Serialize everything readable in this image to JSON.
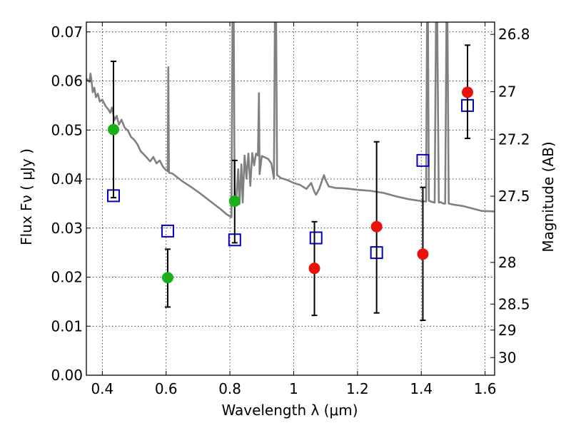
{
  "chart_data": {
    "type": "scatter",
    "xlabel": "Wavelength  λ (μm)",
    "ylabel": "Flux  Fν ( μJy )",
    "ylabel_right": "Magnitude (AB)",
    "xlim": [
      0.35,
      1.63
    ],
    "ylim": [
      0,
      0.072
    ],
    "grid": true,
    "x_ticks": [
      0.4,
      0.6,
      0.8,
      1,
      1.2,
      1.4,
      1.6
    ],
    "x_tick_labels": [
      "0.4",
      "0.6",
      "0.8",
      "1",
      "1.2",
      "1.4",
      "1.6"
    ],
    "y_ticks": [
      0,
      0.01,
      0.02,
      0.03,
      0.04,
      0.05,
      0.06,
      0.07
    ],
    "y_tick_labels": [
      "0.00",
      "0.01",
      "0.02",
      "0.03",
      "0.04",
      "0.05",
      "0.06",
      "0.07"
    ],
    "right_ticks": [
      {
        "label": "26.8",
        "flux": 0.0695
      },
      {
        "label": "27",
        "flux": 0.0578
      },
      {
        "label": "27.2",
        "flux": 0.0481
      },
      {
        "label": "27.5",
        "flux": 0.0365
      },
      {
        "label": "28",
        "flux": 0.023
      },
      {
        "label": "28.5",
        "flux": 0.0145
      },
      {
        "label": "29",
        "flux": 0.0092
      },
      {
        "label": "30",
        "flux": 0.0036
      }
    ],
    "series": [
      {
        "style": "model-line",
        "color": "#808080",
        "points": [
          [
            0.35,
            0.0605
          ],
          [
            0.36,
            0.0598
          ],
          [
            0.363,
            0.0615
          ],
          [
            0.367,
            0.0596
          ],
          [
            0.37,
            0.0577
          ],
          [
            0.375,
            0.0586
          ],
          [
            0.38,
            0.0567
          ],
          [
            0.386,
            0.0574
          ],
          [
            0.392,
            0.0558
          ],
          [
            0.4,
            0.0562
          ],
          [
            0.41,
            0.0549
          ],
          [
            0.42,
            0.0541
          ],
          [
            0.425,
            0.0535
          ],
          [
            0.43,
            0.0546
          ],
          [
            0.438,
            0.052
          ],
          [
            0.445,
            0.0529
          ],
          [
            0.452,
            0.0511
          ],
          [
            0.46,
            0.0521
          ],
          [
            0.47,
            0.0505
          ],
          [
            0.48,
            0.0499
          ],
          [
            0.49,
            0.0486
          ],
          [
            0.5,
            0.048
          ],
          [
            0.51,
            0.0471
          ],
          [
            0.52,
            0.0457
          ],
          [
            0.535,
            0.0447
          ],
          [
            0.55,
            0.0436
          ],
          [
            0.56,
            0.0445
          ],
          [
            0.57,
            0.0432
          ],
          [
            0.58,
            0.0438
          ],
          [
            0.59,
            0.0425
          ],
          [
            0.6,
            0.0418
          ],
          [
            0.605,
            0.0416
          ],
          [
            0.607,
            0.0628
          ],
          [
            0.609,
            0.0413
          ],
          [
            0.62,
            0.0411
          ],
          [
            0.65,
            0.0396
          ],
          [
            0.68,
            0.0383
          ],
          [
            0.7,
            0.0374
          ],
          [
            0.72,
            0.0364
          ],
          [
            0.75,
            0.0349
          ],
          [
            0.77,
            0.0339
          ],
          [
            0.79,
            0.0328
          ],
          [
            0.805,
            0.0322
          ],
          [
            0.808,
            0.072
          ],
          [
            0.812,
            0.072
          ],
          [
            0.815,
            0.0345
          ],
          [
            0.82,
            0.0358
          ],
          [
            0.826,
            0.042
          ],
          [
            0.83,
            0.0349
          ],
          [
            0.836,
            0.043
          ],
          [
            0.84,
            0.0352
          ],
          [
            0.846,
            0.0448
          ],
          [
            0.852,
            0.0401
          ],
          [
            0.858,
            0.0452
          ],
          [
            0.864,
            0.0386
          ],
          [
            0.87,
            0.0453
          ],
          [
            0.876,
            0.0428
          ],
          [
            0.882,
            0.0452
          ],
          [
            0.888,
            0.0448
          ],
          [
            0.891,
            0.0575
          ],
          [
            0.893,
            0.041
          ],
          [
            0.9,
            0.0447
          ],
          [
            0.92,
            0.0441
          ],
          [
            0.93,
            0.0432
          ],
          [
            0.938,
            0.0401
          ],
          [
            0.941,
            0.072
          ],
          [
            0.945,
            0.072
          ],
          [
            0.948,
            0.0408
          ],
          [
            0.96,
            0.0402
          ],
          [
            0.98,
            0.0398
          ],
          [
            1.0,
            0.0392
          ],
          [
            1.02,
            0.0388
          ],
          [
            1.04,
            0.038
          ],
          [
            1.055,
            0.0392
          ],
          [
            1.065,
            0.0374
          ],
          [
            1.07,
            0.0368
          ],
          [
            1.08,
            0.038
          ],
          [
            1.095,
            0.0408
          ],
          [
            1.1,
            0.0398
          ],
          [
            1.11,
            0.0385
          ],
          [
            1.13,
            0.0382
          ],
          [
            1.16,
            0.0381
          ],
          [
            1.2,
            0.0378
          ],
          [
            1.24,
            0.0376
          ],
          [
            1.28,
            0.0372
          ],
          [
            1.32,
            0.0365
          ],
          [
            1.36,
            0.0359
          ],
          [
            1.4,
            0.0355
          ],
          [
            1.415,
            0.0354
          ],
          [
            1.418,
            0.072
          ],
          [
            1.421,
            0.072
          ],
          [
            1.424,
            0.0356
          ],
          [
            1.43,
            0.0354
          ],
          [
            1.442,
            0.0352
          ],
          [
            1.446,
            0.072
          ],
          [
            1.45,
            0.072
          ],
          [
            1.455,
            0.0352
          ],
          [
            1.46,
            0.0353
          ],
          [
            1.47,
            0.035
          ],
          [
            1.475,
            0.035
          ],
          [
            1.479,
            0.072
          ],
          [
            1.482,
            0.072
          ],
          [
            1.486,
            0.035
          ],
          [
            1.5,
            0.0348
          ],
          [
            1.53,
            0.0345
          ],
          [
            1.56,
            0.034
          ],
          [
            1.59,
            0.0335
          ],
          [
            1.63,
            0.0334
          ]
        ]
      },
      {
        "style": "open-square",
        "color": "#0000cc",
        "points": [
          [
            0.435,
            0.0366
          ],
          [
            0.605,
            0.0294
          ],
          [
            0.815,
            0.0276
          ],
          [
            1.07,
            0.028
          ],
          [
            1.26,
            0.025
          ],
          [
            1.405,
            0.0438
          ],
          [
            1.545,
            0.055
          ]
        ]
      },
      {
        "style": "filled-circle",
        "color": "#1bb01b",
        "points": [
          [
            0.435,
            0.0501,
            0.064,
            0.0362
          ],
          [
            0.605,
            0.0199,
            0.0257,
            0.0139
          ],
          [
            0.815,
            0.0355,
            0.0438,
            0.027
          ]
        ]
      },
      {
        "style": "filled-circle",
        "color": "#e8140c",
        "points": [
          [
            1.065,
            0.0218,
            0.0313,
            0.0122
          ],
          [
            1.26,
            0.0303,
            0.0476,
            0.0127
          ],
          [
            1.405,
            0.0247,
            0.0383,
            0.0112
          ],
          [
            1.545,
            0.0577,
            0.0673,
            0.0483
          ]
        ]
      }
    ]
  }
}
